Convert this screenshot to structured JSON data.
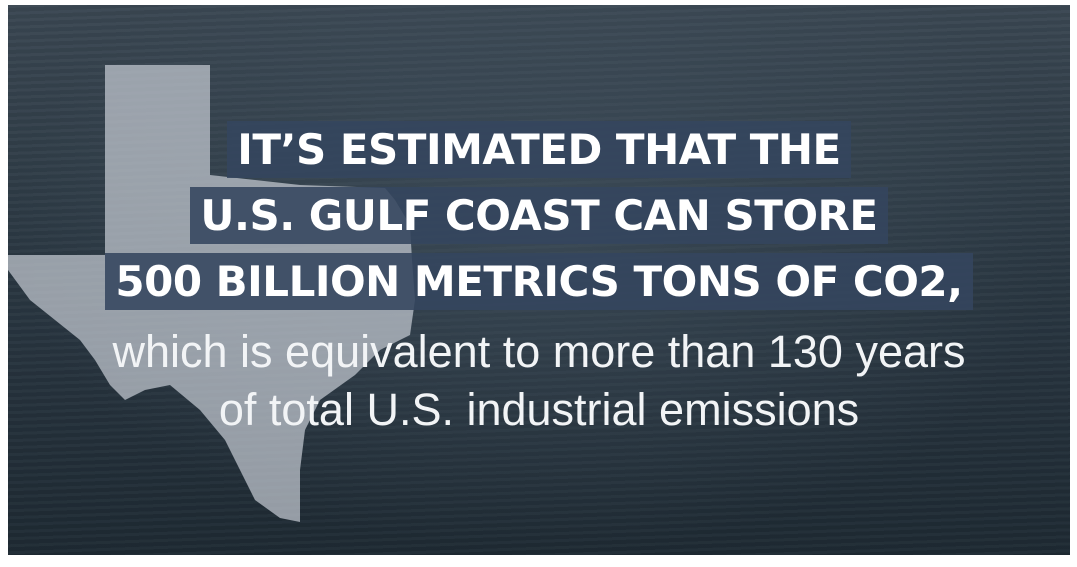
{
  "headline": [
    "IT’S ESTIMATED THAT THE",
    "U.S. GULF COAST CAN STORE",
    "500 BILLION METRICS TONS OF CO2,"
  ],
  "body": [
    "which is equivalent to more than 130 years",
    "of total U.S. industrial emissions"
  ]
}
